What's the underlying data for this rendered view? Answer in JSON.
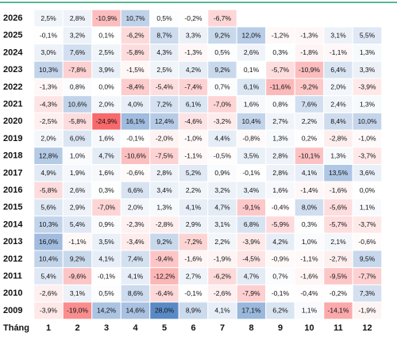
{
  "chart_data": {
    "type": "heatmap",
    "x_label": "Tháng",
    "x": [
      "1",
      "2",
      "3",
      "4",
      "5",
      "6",
      "7",
      "8",
      "9",
      "10",
      "11",
      "12"
    ],
    "y": [
      "2026",
      "2025",
      "2024",
      "2023",
      "2022",
      "2021",
      "2020",
      "2019",
      "2018",
      "2017",
      "2016",
      "2015",
      "2014",
      "2013",
      "2012",
      "2011",
      "2010",
      "2009"
    ],
    "positive_color": "#5a8ac6",
    "negative_color": "#f8696b",
    "header_line_color": "#1f9e6e",
    "values": [
      [
        2.5,
        2.8,
        -10.9,
        10.7,
        0.5,
        -0.2,
        -6.7,
        null,
        null,
        null,
        null,
        null
      ],
      [
        -0.1,
        3.2,
        0.1,
        -6.2,
        8.7,
        3.3,
        9.2,
        12.0,
        -1.2,
        -1.3,
        3.1,
        5.5
      ],
      [
        3.0,
        7.6,
        2.5,
        -5.8,
        4.3,
        -1.3,
        0.5,
        2.6,
        0.3,
        -1.8,
        -1.1,
        1.3
      ],
      [
        10.3,
        -7.8,
        3.9,
        -1.5,
        2.5,
        4.2,
        9.2,
        0.1,
        -5.7,
        -10.9,
        6.4,
        3.3
      ],
      [
        -1.3,
        0.8,
        0.0,
        -8.4,
        -5.4,
        -7.4,
        0.7,
        6.1,
        -11.6,
        -9.2,
        2.0,
        -3.9
      ],
      [
        -4.3,
        10.6,
        2.0,
        4.0,
        7.2,
        6.1,
        -7.0,
        1.6,
        0.8,
        7.6,
        2.4,
        1.3
      ],
      [
        -2.5,
        -5.8,
        -24.9,
        16.1,
        12.4,
        -4.6,
        -3.2,
        10.4,
        2.7,
        2.2,
        8.4,
        10.0
      ],
      [
        2.0,
        6.0,
        1.6,
        -0.1,
        -2.0,
        -1.0,
        4.4,
        -0.8,
        1.3,
        0.2,
        -2.8,
        -1.0
      ],
      [
        12.8,
        1.0,
        4.7,
        -10.6,
        -7.5,
        -1.1,
        -0.5,
        3.5,
        2.8,
        -10.1,
        1.3,
        -3.7
      ],
      [
        4.9,
        1.9,
        1.6,
        -0.6,
        2.8,
        5.2,
        0.9,
        -0.1,
        2.8,
        4.1,
        13.5,
        3.6
      ],
      [
        -5.8,
        2.6,
        0.3,
        6.6,
        3.4,
        2.2,
        3.2,
        3.4,
        1.6,
        -1.4,
        -1.6,
        0.0
      ],
      [
        5.6,
        2.9,
        -7.0,
        2.0,
        1.3,
        4.1,
        4.7,
        -9.1,
        -0.4,
        8.0,
        -5.6,
        1.1
      ],
      [
        10.3,
        5.4,
        0.9,
        -2.3,
        -2.8,
        2.9,
        3.1,
        6.8,
        -5.9,
        0.3,
        -5.7,
        -3.7
      ],
      [
        16.0,
        -1.1,
        3.5,
        -3.4,
        9.2,
        -7.2,
        2.2,
        -3.9,
        4.2,
        1.0,
        2.1,
        -0.6
      ],
      [
        10.4,
        9.2,
        4.1,
        7.4,
        -9.4,
        -1.6,
        -1.9,
        -4.5,
        -0.9,
        -1.1,
        -2.7,
        9.5
      ],
      [
        5.4,
        -9.6,
        -0.1,
        4.1,
        -12.2,
        2.7,
        -6.2,
        4.7,
        0.7,
        -1.6,
        -9.5,
        -7.7
      ],
      [
        -2.6,
        3.1,
        0.5,
        8.6,
        -6.4,
        -0.1,
        -2.6,
        -7.9,
        -0.1,
        -0.4,
        -0.2,
        7.3
      ],
      [
        -3.9,
        -19.0,
        14.2,
        14.6,
        28.0,
        8.9,
        4.1,
        17.1,
        6.2,
        1.1,
        -14.1,
        -1.9
      ]
    ],
    "value_labels": [
      [
        "2,5%",
        "2,8%",
        "-10,9%",
        "10,7%",
        "0,5%",
        "-0,2%",
        "-6,7%",
        null,
        null,
        null,
        null,
        null
      ],
      [
        "-0,1%",
        "3,2%",
        "0,1%",
        "-6,2%",
        "8,7%",
        "3,3%",
        "9,2%",
        "12,0%",
        "-1,2%",
        "-1,3%",
        "3,1%",
        "5,5%"
      ],
      [
        "3,0%",
        "7,6%",
        "2,5%",
        "-5,8%",
        "4,3%",
        "-1,3%",
        "0,5%",
        "2,6%",
        "0,3%",
        "-1,8%",
        "-1,1%",
        "1,3%"
      ],
      [
        "10,3%",
        "-7,8%",
        "3,9%",
        "-1,5%",
        "2,5%",
        "4,2%",
        "9,2%",
        "0,1%",
        "-5,7%",
        "-10,9%",
        "6,4%",
        "3,3%"
      ],
      [
        "-1,3%",
        "0,8%",
        "0,0%",
        "-8,4%",
        "-5,4%",
        "-7,4%",
        "0,7%",
        "6,1%",
        "-11,6%",
        "-9,2%",
        "2,0%",
        "-3,9%"
      ],
      [
        "-4,3%",
        "10,6%",
        "2,0%",
        "4,0%",
        "7,2%",
        "6,1%",
        "-7,0%",
        "1,6%",
        "0,8%",
        "7,6%",
        "2,4%",
        "1,3%"
      ],
      [
        "-2,5%",
        "-5,8%",
        "-24,9%",
        "16,1%",
        "12,4%",
        "-4,6%",
        "-3,2%",
        "10,4%",
        "2,7%",
        "2,2%",
        "8,4%",
        "10,0%"
      ],
      [
        "2,0%",
        "6,0%",
        "1,6%",
        "-0,1%",
        "-2,0%",
        "-1,0%",
        "4,4%",
        "-0,8%",
        "1,3%",
        "0,2%",
        "-2,8%",
        "-1,0%"
      ],
      [
        "12,8%",
        "1,0%",
        "4,7%",
        "-10,6%",
        "-7,5%",
        "-1,1%",
        "-0,5%",
        "3,5%",
        "2,8%",
        "-10,1%",
        "1,3%",
        "-3,7%"
      ],
      [
        "4,9%",
        "1,9%",
        "1,6%",
        "-0,6%",
        "2,8%",
        "5,2%",
        "0,9%",
        "-0,1%",
        "2,8%",
        "4,1%",
        "13,5%",
        "3,6%"
      ],
      [
        "-5,8%",
        "2,6%",
        "0,3%",
        "6,6%",
        "3,4%",
        "2,2%",
        "3,2%",
        "3,4%",
        "1,6%",
        "-1,4%",
        "-1,6%",
        "0,0%"
      ],
      [
        "5,6%",
        "2,9%",
        "-7,0%",
        "2,0%",
        "1,3%",
        "4,1%",
        "4,7%",
        "-9,1%",
        "-0,4%",
        "8,0%",
        "-5,6%",
        "1,1%"
      ],
      [
        "10,3%",
        "5,4%",
        "0,9%",
        "-2,3%",
        "-2,8%",
        "2,9%",
        "3,1%",
        "6,8%",
        "-5,9%",
        "0,3%",
        "-5,7%",
        "-3,7%"
      ],
      [
        "16,0%",
        "-1,1%",
        "3,5%",
        "-3,4%",
        "9,2%",
        "-7,2%",
        "2,2%",
        "-3,9%",
        "4,2%",
        "1,0%",
        "2,1%",
        "-0,6%"
      ],
      [
        "10,4%",
        "9,2%",
        "4,1%",
        "7,4%",
        "-9,4%",
        "-1,6%",
        "-1,9%",
        "-4,5%",
        "-0,9%",
        "-1,1%",
        "-2,7%",
        "9,5%"
      ],
      [
        "5,4%",
        "-9,6%",
        "-0,1%",
        "4,1%",
        "-12,2%",
        "2,7%",
        "-6,2%",
        "4,7%",
        "0,7%",
        "-1,6%",
        "-9,5%",
        "-7,7%"
      ],
      [
        "-2,6%",
        "3,1%",
        "0,5%",
        "8,6%",
        "-6,4%",
        "-0,1%",
        "-2,6%",
        "-7,9%",
        "-0,1%",
        "-0,4%",
        "-0,2%",
        "7,3%"
      ],
      [
        "-3,9%",
        "-19,0%",
        "14,2%",
        "14,6%",
        "28,0%",
        "8,9%",
        "4,1%",
        "17,1%",
        "6,2%",
        "1,1%",
        "-14,1%",
        "-1,9%"
      ]
    ]
  }
}
